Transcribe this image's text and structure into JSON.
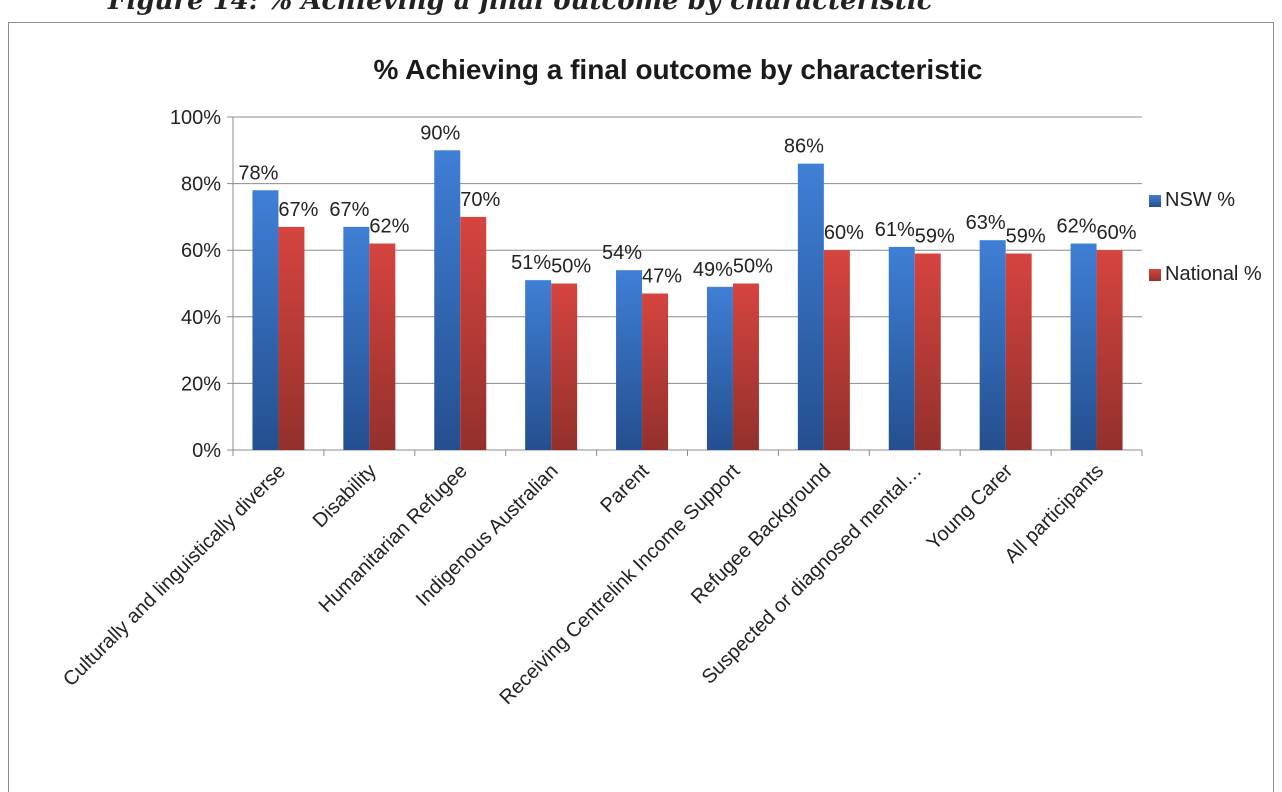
{
  "caption": "Figure 14: % Achieving a final outcome by characteristic",
  "chart_data": {
    "type": "bar",
    "title": "% Achieving a final outcome by characteristic",
    "xlabel": "",
    "ylabel": "",
    "categories": [
      "Culturally and linguistically diverse",
      "Disability",
      "Humanitarian Refugee",
      "Indigenous Australian",
      "Parent",
      "Receiving Centrelink Income Support",
      "Refugee Background",
      "Suspected or diagnosed mental…",
      "Young Carer",
      "All participants"
    ],
    "series": [
      {
        "name": "NSW %",
        "color": "#3b75c9",
        "values": [
          78,
          67,
          90,
          51,
          54,
          49,
          86,
          61,
          63,
          62
        ],
        "labels": [
          "78%",
          "67%",
          "90%",
          "51%",
          "54%",
          "49%",
          "86%",
          "61%",
          "63%",
          "62%"
        ]
      },
      {
        "name": "National %",
        "color": "#c93d38",
        "values": [
          67,
          62,
          70,
          50,
          47,
          50,
          60,
          59,
          59,
          60
        ],
        "labels": [
          "67%",
          "62%",
          "70%",
          "50%",
          "47%",
          "50%",
          "60%",
          "59%",
          "59%",
          "60%"
        ]
      }
    ],
    "yticks": [
      "0%",
      "20%",
      "40%",
      "60%",
      "80%",
      "100%"
    ],
    "ylim": [
      0,
      100
    ],
    "grid": true,
    "legend": "right"
  }
}
